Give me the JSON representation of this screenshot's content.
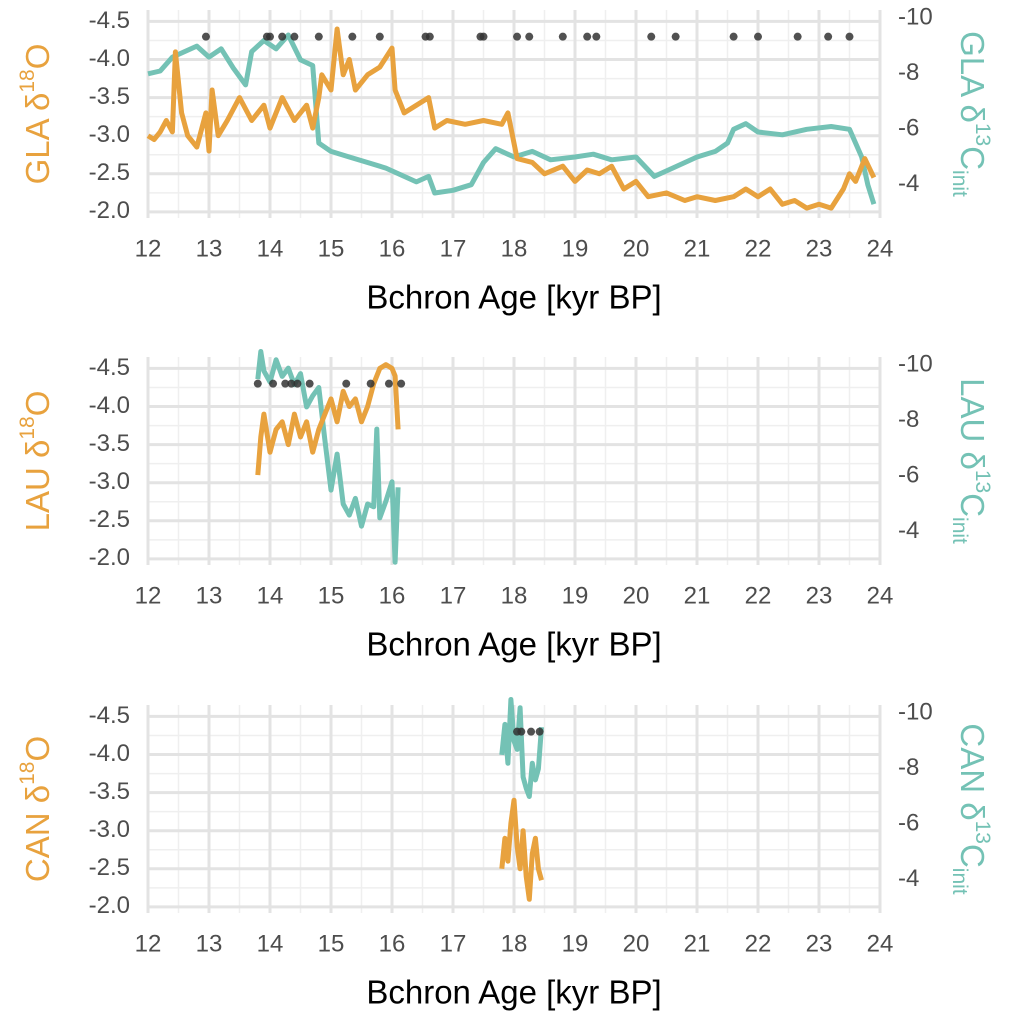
{
  "chart_data": [
    {
      "type": "line",
      "xlabel": "Bchron Age [kyr BP]",
      "ylabel": [
        "GLA δ",
        "18",
        "O"
      ],
      "y2label": [
        "GLA δ",
        "13",
        "C",
        "init"
      ],
      "xlim": [
        12,
        24
      ],
      "xticks": [
        12,
        13,
        14,
        15,
        16,
        17,
        18,
        19,
        20,
        21,
        22,
        23,
        24
      ],
      "ylim": [
        -1.92,
        -4.65
      ],
      "yticks": [
        -4.5,
        {
          "value": -4,
          "label": "-4.0"
        },
        -3.5,
        {
          "value": -3,
          "label": "-3.0"
        },
        -2.5,
        {
          "value": -2,
          "label": "-2.0"
        }
      ],
      "y2lim": [
        -2.8,
        -10.3
      ],
      "y2ticks": [
        -10,
        -8,
        -6,
        -4
      ],
      "grid": true,
      "series": [
        {
          "type": "line",
          "color": "#74C2B5",
          "axis": "y2",
          "x": [
            12.0,
            12.2,
            12.4,
            12.6,
            12.8,
            13.0,
            13.2,
            13.4,
            13.6,
            13.7,
            13.9,
            14.1,
            14.3,
            14.5,
            14.7,
            14.8,
            15.0,
            15.3,
            15.6,
            15.9,
            16.1,
            16.4,
            16.6,
            16.7,
            17.0,
            17.3,
            17.5,
            17.7,
            18.0,
            18.3,
            18.6,
            19.0,
            19.3,
            19.6,
            20.0,
            20.3,
            20.6,
            21.0,
            21.3,
            21.5,
            21.6,
            21.8,
            22.0,
            22.4,
            22.8,
            23.2,
            23.5,
            23.7,
            23.8,
            23.9
          ],
          "values": [
            -8.0,
            -8.1,
            -8.6,
            -8.8,
            -9.0,
            -8.6,
            -8.9,
            -8.2,
            -7.6,
            -8.8,
            -9.2,
            -8.9,
            -9.4,
            -8.5,
            -8.3,
            -5.5,
            -5.2,
            -5.0,
            -4.8,
            -4.6,
            -4.4,
            -4.1,
            -4.3,
            -3.7,
            -3.8,
            -4.0,
            -4.8,
            -5.3,
            -5.0,
            -5.2,
            -4.9,
            -5.0,
            -5.1,
            -4.9,
            -5.0,
            -4.3,
            -4.6,
            -5.0,
            -5.2,
            -5.5,
            -6.0,
            -6.2,
            -5.9,
            -5.8,
            -6.0,
            -6.1,
            -6.0,
            -5.0,
            -4.0,
            -3.3
          ]
        },
        {
          "type": "line",
          "color": "#E8A23E",
          "axis": "y",
          "x": [
            12.0,
            12.1,
            12.2,
            12.3,
            12.4,
            12.45,
            12.55,
            12.65,
            12.8,
            12.95,
            13.0,
            13.05,
            13.15,
            13.3,
            13.5,
            13.7,
            13.9,
            14.0,
            14.2,
            14.4,
            14.6,
            14.7,
            14.8,
            14.85,
            15.0,
            15.1,
            15.2,
            15.3,
            15.4,
            15.6,
            15.8,
            16.0,
            16.05,
            16.2,
            16.4,
            16.6,
            16.7,
            16.9,
            17.2,
            17.5,
            17.8,
            17.9,
            18.05,
            18.3,
            18.5,
            18.8,
            19.0,
            19.2,
            19.4,
            19.6,
            19.8,
            20.0,
            20.2,
            20.5,
            20.8,
            21.0,
            21.3,
            21.6,
            21.8,
            22.0,
            22.2,
            22.4,
            22.6,
            22.8,
            23.0,
            23.2,
            23.4,
            23.5,
            23.6,
            23.75,
            23.9
          ],
          "values": [
            -3.0,
            -2.95,
            -3.05,
            -3.2,
            -3.05,
            -4.1,
            -3.3,
            -3.0,
            -2.85,
            -3.3,
            -2.8,
            -3.6,
            -3.0,
            -3.2,
            -3.5,
            -3.2,
            -3.4,
            -3.1,
            -3.5,
            -3.2,
            -3.4,
            -3.1,
            -3.5,
            -3.8,
            -3.6,
            -4.4,
            -3.8,
            -4.0,
            -3.6,
            -3.8,
            -3.9,
            -4.15,
            -3.6,
            -3.3,
            -3.4,
            -3.5,
            -3.1,
            -3.2,
            -3.15,
            -3.2,
            -3.15,
            -3.3,
            -2.7,
            -2.65,
            -2.5,
            -2.6,
            -2.4,
            -2.55,
            -2.5,
            -2.6,
            -2.3,
            -2.4,
            -2.2,
            -2.25,
            -2.15,
            -2.2,
            -2.15,
            -2.2,
            -2.3,
            -2.2,
            -2.3,
            -2.1,
            -2.15,
            -2.05,
            -2.1,
            -2.05,
            -2.3,
            -2.5,
            -2.4,
            -2.7,
            -2.45
          ]
        },
        {
          "type": "scatter",
          "color": "#333333",
          "axis": "y",
          "x": [
            12.95,
            13.95,
            14.0,
            14.2,
            14.4,
            14.8,
            15.35,
            15.8,
            16.55,
            16.62,
            17.45,
            17.5,
            18.05,
            18.25,
            18.8,
            19.2,
            19.35,
            20.25,
            20.65,
            21.6,
            22.0,
            22.65,
            23.15,
            23.5
          ],
          "values": [
            -4.3,
            -4.3,
            -4.3,
            -4.3,
            -4.3,
            -4.3,
            -4.3,
            -4.3,
            -4.3,
            -4.3,
            -4.3,
            -4.3,
            -4.3,
            -4.3,
            -4.3,
            -4.3,
            -4.3,
            -4.3,
            -4.3,
            -4.3,
            -4.3,
            -4.3,
            -4.3,
            -4.3
          ]
        }
      ]
    },
    {
      "type": "line",
      "xlabel": "Bchron Age [kyr BP]",
      "ylabel": [
        "LAU δ",
        "18",
        "O"
      ],
      "y2label": [
        "LAU δ",
        "13",
        "C",
        "init"
      ],
      "xlim": [
        12,
        24
      ],
      "xticks": [
        12,
        13,
        14,
        15,
        16,
        17,
        18,
        19,
        20,
        21,
        22,
        23,
        24
      ],
      "ylim": [
        -1.92,
        -4.65
      ],
      "yticks": [
        -4.5,
        {
          "value": -4,
          "label": "-4.0"
        },
        -3.5,
        {
          "value": -3,
          "label": "-3.0"
        },
        -2.5,
        {
          "value": -2,
          "label": "-2.0"
        }
      ],
      "y2lim": [
        -2.8,
        -10.3
      ],
      "y2ticks": [
        -10,
        -8,
        -6,
        -4
      ],
      "grid": true,
      "series": [
        {
          "type": "line",
          "color": "#74C2B5",
          "axis": "y2",
          "x": [
            13.8,
            13.85,
            13.9,
            14.0,
            14.1,
            14.2,
            14.3,
            14.4,
            14.5,
            14.6,
            14.7,
            14.8,
            14.9,
            15.0,
            15.1,
            15.2,
            15.3,
            15.4,
            15.5,
            15.6,
            15.7,
            15.75,
            15.8,
            15.9,
            16.0,
            16.05,
            16.1
          ],
          "values": [
            -9.5,
            -10.5,
            -9.8,
            -9.4,
            -10.2,
            -9.6,
            -9.9,
            -9.3,
            -9.7,
            -8.5,
            -8.9,
            -9.2,
            -7.3,
            -5.5,
            -6.8,
            -5.0,
            -4.6,
            -5.2,
            -4.2,
            -5.0,
            -4.9,
            -7.7,
            -4.5,
            -5.1,
            -5.8,
            -2.9,
            -5.6
          ]
        },
        {
          "type": "line",
          "color": "#E8A23E",
          "axis": "y",
          "x": [
            13.8,
            13.85,
            13.9,
            14.0,
            14.1,
            14.2,
            14.3,
            14.4,
            14.5,
            14.6,
            14.7,
            14.8,
            14.9,
            15.0,
            15.1,
            15.2,
            15.3,
            15.4,
            15.5,
            15.6,
            15.7,
            15.8,
            15.9,
            16.0,
            16.05,
            16.1
          ],
          "values": [
            -3.1,
            -3.6,
            -3.9,
            -3.4,
            -3.7,
            -3.8,
            -3.5,
            -3.9,
            -3.6,
            -3.8,
            -3.4,
            -3.7,
            -3.9,
            -4.1,
            -3.8,
            -4.2,
            -4.0,
            -4.1,
            -3.8,
            -4.0,
            -4.3,
            -4.5,
            -4.55,
            -4.5,
            -4.4,
            -3.7
          ]
        },
        {
          "type": "scatter",
          "color": "#333333",
          "axis": "y",
          "x": [
            13.8,
            14.05,
            14.25,
            14.35,
            14.45,
            14.65,
            15.25,
            15.65,
            15.95,
            16.15
          ],
          "values": [
            -4.3,
            -4.3,
            -4.3,
            -4.3,
            -4.3,
            -4.3,
            -4.3,
            -4.3,
            -4.3,
            -4.3
          ]
        }
      ]
    },
    {
      "type": "line",
      "xlabel": "Bchron Age [kyr BP]",
      "ylabel": [
        "CAN δ",
        "18",
        "O"
      ],
      "y2label": [
        "CAN δ",
        "13",
        "C",
        "init"
      ],
      "xlim": [
        12,
        24
      ],
      "xticks": [
        12,
        13,
        14,
        15,
        16,
        17,
        18,
        19,
        20,
        21,
        22,
        23,
        24
      ],
      "ylim": [
        -1.92,
        -4.65
      ],
      "yticks": [
        -4.5,
        {
          "value": -4,
          "label": "-4.0"
        },
        -3.5,
        {
          "value": -3,
          "label": "-3.0"
        },
        -2.5,
        {
          "value": -2,
          "label": "-2.0"
        }
      ],
      "y2lim": [
        -2.8,
        -10.3
      ],
      "y2ticks": [
        -10,
        -8,
        -6,
        -4
      ],
      "grid": true,
      "series": [
        {
          "type": "line",
          "color": "#74C2B5",
          "axis": "y2",
          "x": [
            17.8,
            17.85,
            17.9,
            17.95,
            18.0,
            18.05,
            18.1,
            18.15,
            18.2,
            18.25,
            18.3,
            18.35,
            18.4,
            18.45
          ],
          "values": [
            -8.5,
            -9.6,
            -8.2,
            -10.5,
            -9.0,
            -8.7,
            -10.2,
            -7.7,
            -7.3,
            -7.0,
            -8.2,
            -7.6,
            -8.0,
            -9.5
          ]
        },
        {
          "type": "line",
          "color": "#E8A23E",
          "axis": "y",
          "x": [
            17.8,
            17.85,
            17.9,
            17.95,
            18.0,
            18.05,
            18.1,
            18.15,
            18.2,
            18.25,
            18.3,
            18.35,
            18.4,
            18.45
          ],
          "values": [
            -2.5,
            -2.9,
            -2.6,
            -3.1,
            -3.4,
            -2.8,
            -2.5,
            -3.0,
            -2.4,
            -2.1,
            -2.7,
            -2.9,
            -2.5,
            -2.35
          ]
        },
        {
          "type": "scatter",
          "color": "#333333",
          "axis": "y",
          "x": [
            18.05,
            18.12,
            18.28,
            18.42
          ],
          "values": [
            -4.3,
            -4.3,
            -4.3,
            -4.3
          ]
        }
      ]
    }
  ]
}
